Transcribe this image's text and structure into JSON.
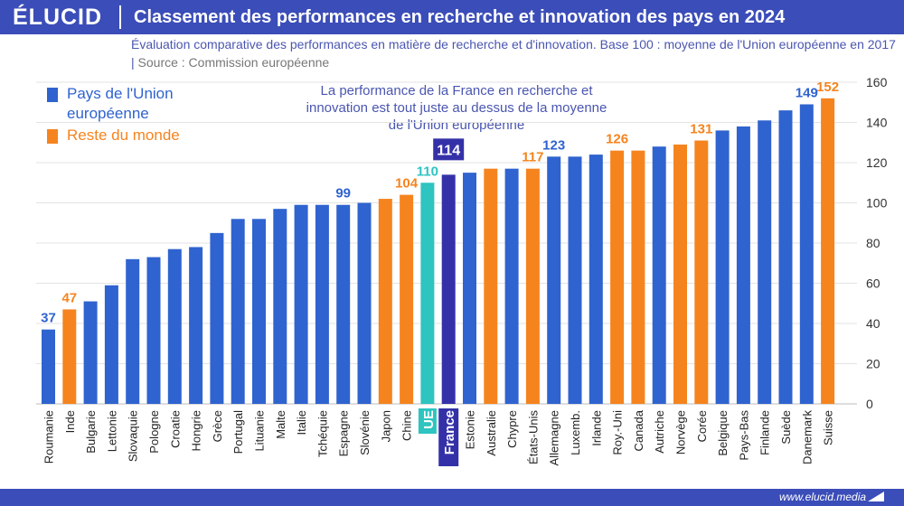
{
  "header": {
    "logo": "ÉLUCID",
    "title": "Classement des performances en recherche et innovation des pays en 2024"
  },
  "subtitle": {
    "line": "Évaluation comparative des performances en matière de recherche et d'innovation. Base 100 : moyenne de l'Union européenne en 2017",
    "separator": "|",
    "source": "Source : Commission européenne"
  },
  "legend": {
    "items": [
      {
        "label": "Pays de l'Union européenne",
        "color": "#2f63cf"
      },
      {
        "label": "Reste du monde",
        "color": "#f5841f"
      }
    ]
  },
  "annotation": "La performance de la France en recherche et innovation est tout juste au dessus de la moyenne de l'Union européenne",
  "footer": {
    "url": "www.elucid.media"
  },
  "colors": {
    "eu": "#2f63cf",
    "world": "#f5841f",
    "ue": "#2ec4c0",
    "france": "#3431a8",
    "accent": "#3b4db8"
  },
  "chart_data": {
    "type": "bar",
    "title": "Classement des performances en recherche et innovation des pays en 2024",
    "ylim": [
      0,
      160
    ],
    "yticks": [
      0,
      20,
      40,
      60,
      80,
      100,
      120,
      140,
      160
    ],
    "y_axis_side": "right",
    "gridlines": true,
    "categories": [
      "Roumanie",
      "Inde",
      "Bulgarie",
      "Lettonie",
      "Slovaquie",
      "Pologne",
      "Croatie",
      "Hongrie",
      "Grèce",
      "Portugal",
      "Lituanie",
      "Malte",
      "Italie",
      "Tchéquie",
      "Espagne",
      "Slovénie",
      "Japon",
      "Chine",
      "UE",
      "France",
      "Estonie",
      "Australie",
      "Chypre",
      "États-Unis",
      "Allemagne",
      "Luxemb.",
      "Irlande",
      "Roy.-Uni",
      "Canada",
      "Autriche",
      "Norvège",
      "Corée",
      "Belgique",
      "Pays-Bas",
      "Finlande",
      "Suède",
      "Danemark",
      "Suisse"
    ],
    "values": [
      37,
      47,
      51,
      59,
      72,
      73,
      77,
      78,
      85,
      92,
      92,
      97,
      99,
      99,
      99,
      100,
      102,
      104,
      110,
      114,
      115,
      117,
      117,
      117,
      123,
      123,
      124,
      126,
      126,
      128,
      129,
      131,
      136,
      138,
      141,
      146,
      149,
      152
    ],
    "groups": [
      "eu",
      "world",
      "eu",
      "eu",
      "eu",
      "eu",
      "eu",
      "eu",
      "eu",
      "eu",
      "eu",
      "eu",
      "eu",
      "eu",
      "eu",
      "eu",
      "world",
      "world",
      "ue",
      "france",
      "eu",
      "world",
      "eu",
      "world",
      "eu",
      "eu",
      "eu",
      "world",
      "world",
      "eu",
      "world",
      "world",
      "eu",
      "eu",
      "eu",
      "eu",
      "eu",
      "world"
    ],
    "data_labels": {
      "Roumanie": "37",
      "Inde": "47",
      "Espagne": "99",
      "Chine": "104",
      "UE": "110",
      "France": "114",
      "États-Unis": "117",
      "Allemagne": "123",
      "Roy.-Uni": "126",
      "Corée": "131",
      "Danemark": "149",
      "Suisse": "152"
    }
  }
}
